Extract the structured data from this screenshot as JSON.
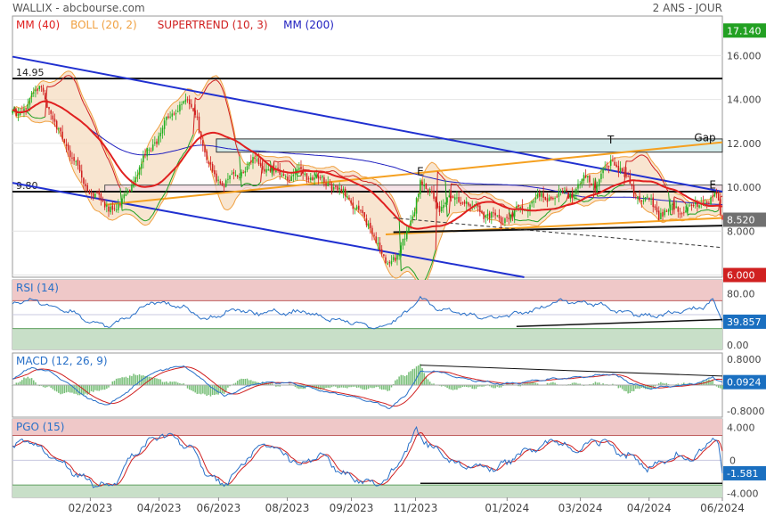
{
  "header": {
    "left": "WALLIX - abcbourse.com",
    "right": "2 ANS - JOUR"
  },
  "colors": {
    "bull": "#22b022",
    "bear": "#d02020",
    "ma40": "#e02020",
    "boll": "#f0a040",
    "boll_fill": "#f5dcc0",
    "supertrend": "#d02020",
    "ma200": "#2020c0",
    "channel": "#2030d0",
    "orange_line": "#f5a020",
    "rsi_line": "#2870c8",
    "macd_line": "#2870c8",
    "signal_line": "#d02020",
    "hist": "#4aa84a",
    "zone_red": "#efc8c8",
    "zone_green": "#c8dfc8",
    "gap_fill": "#cde9e9",
    "price_badge_blue": "#1a6fc0",
    "price_badge_grey": "#707070",
    "price_badge_green": "#22a022",
    "price_badge_red": "#d02020"
  },
  "chart_data": [
    {
      "id": "price",
      "type": "candlestick",
      "legend": [
        {
          "label": "MM (40)",
          "color": "#e02020"
        },
        {
          "label": "BOLL (20, 2)",
          "color": "#f0a040"
        },
        {
          "label": "SUPERTREND (10, 3)",
          "color": "#d02020"
        },
        {
          "label": "MM (200)",
          "color": "#2020c0"
        }
      ],
      "y_range": [
        5.9,
        17.8
      ],
      "y_ticks": [
        "6.000",
        "8.000",
        "10.000",
        "12.000",
        "14.000",
        "16.000"
      ],
      "y_tick_values": [
        6,
        8,
        10,
        12,
        14,
        16
      ],
      "x_labels": [
        "02/2023",
        "04/2023",
        "06/2023",
        "08/2023",
        "09/2023",
        "11/2023",
        "01/2024",
        "03/2024",
        "04/2024",
        "06/2024"
      ],
      "x_label_positions": [
        0.085,
        0.16,
        0.225,
        0.3,
        0.37,
        0.44,
        0.54,
        0.62,
        0.695,
        0.775
      ],
      "x_index_range": [
        0,
        369
      ],
      "price_badges": [
        {
          "text": "17.140",
          "value": 17.14,
          "color": "#22a022"
        },
        {
          "text": "8.520",
          "value": 8.52,
          "color": "#707070"
        },
        {
          "text": "6.000",
          "value": 6.0,
          "color": "#d02020"
        }
      ],
      "levels": [
        {
          "name": "resistance-14.95",
          "label": "14.95",
          "value": 14.95
        },
        {
          "name": "support-9.80",
          "label": "9.80",
          "value": 9.8
        }
      ],
      "annotations": [
        {
          "text": "E",
          "x": 212,
          "y": 10.55
        },
        {
          "text": "T",
          "x": 311,
          "y": 12.0
        },
        {
          "text": "E",
          "x": 364,
          "y": 9.95
        },
        {
          "text": "Gap",
          "x": 360,
          "y": 12.1
        }
      ],
      "anchors": [
        [
          0,
          13.2
        ],
        [
          8,
          13.8
        ],
        [
          15,
          14.6
        ],
        [
          22,
          12.8
        ],
        [
          30,
          11.6
        ],
        [
          38,
          10.0
        ],
        [
          48,
          9.2
        ],
        [
          56,
          9.0
        ],
        [
          62,
          10.2
        ],
        [
          70,
          11.6
        ],
        [
          78,
          12.6
        ],
        [
          84,
          13.6
        ],
        [
          90,
          14.0
        ],
        [
          96,
          13.2
        ],
        [
          100,
          11.4
        ],
        [
          104,
          10.6
        ],
        [
          110,
          10.2
        ],
        [
          118,
          10.7
        ],
        [
          126,
          11.2
        ],
        [
          134,
          10.8
        ],
        [
          142,
          10.5
        ],
        [
          150,
          10.6
        ],
        [
          158,
          10.4
        ],
        [
          166,
          10.1
        ],
        [
          172,
          9.7
        ],
        [
          178,
          9.2
        ],
        [
          184,
          8.3
        ],
        [
          190,
          7.6
        ],
        [
          194,
          6.3
        ],
        [
          198,
          6.8
        ],
        [
          204,
          7.6
        ],
        [
          208,
          8.6
        ],
        [
          212,
          10.4
        ],
        [
          216,
          9.7
        ],
        [
          222,
          9.1
        ],
        [
          228,
          9.5
        ],
        [
          234,
          9.4
        ],
        [
          240,
          9.0
        ],
        [
          248,
          8.7
        ],
        [
          254,
          8.5
        ],
        [
          262,
          8.9
        ],
        [
          268,
          9.2
        ],
        [
          276,
          9.6
        ],
        [
          282,
          9.5
        ],
        [
          290,
          9.7
        ],
        [
          298,
          10.4
        ],
        [
          304,
          10.2
        ],
        [
          308,
          10.7
        ],
        [
          312,
          11.3
        ],
        [
          316,
          10.8
        ],
        [
          320,
          10.2
        ],
        [
          324,
          9.6
        ],
        [
          330,
          9.5
        ],
        [
          336,
          8.8
        ],
        [
          342,
          9.0
        ],
        [
          350,
          8.9
        ],
        [
          356,
          9.2
        ],
        [
          362,
          9.4
        ],
        [
          366,
          9.5
        ],
        [
          369,
          8.52
        ]
      ],
      "channel_lines": [
        {
          "name": "upper-channel",
          "from": [
            0,
            15.95
          ],
          "to": [
            369,
            9.8
          ]
        },
        {
          "name": "lower-channel",
          "from": [
            0,
            10.2
          ],
          "to": [
            266,
            5.9
          ]
        }
      ],
      "support_lines": [
        {
          "name": "orange-trend-1",
          "from": [
            48,
            9.2
          ],
          "to": [
            369,
            12.05
          ]
        },
        {
          "name": "orange-trend-2",
          "from": [
            194,
            7.85
          ],
          "to": [
            369,
            8.6
          ]
        },
        {
          "name": "black-support",
          "from": [
            198,
            7.95
          ],
          "to": [
            369,
            8.25
          ]
        }
      ],
      "dashed_lines": [
        {
          "name": "dashed-trend",
          "from": [
            198,
            8.6
          ],
          "to": [
            369,
            7.25
          ]
        }
      ],
      "gap_zone": {
        "label": "Gap",
        "x_from": 106,
        "x_to": 369,
        "y_low": 11.6,
        "y_high": 12.2
      },
      "pink_zone": {
        "x_from": 48,
        "x_to": 369,
        "y_low": 9.8,
        "y_high": 10.1
      }
    },
    {
      "id": "rsi",
      "type": "line",
      "legend": [
        {
          "label": "RSI (14)",
          "color": "#2870c8"
        }
      ],
      "y_range": [
        0,
        100
      ],
      "y_ticks": [
        "80.00",
        "0.00"
      ],
      "y_tick_values": [
        80,
        0
      ],
      "overbought": 70,
      "oversold": 30,
      "last_value": "39.857",
      "anchors": [
        [
          0,
          65
        ],
        [
          10,
          72
        ],
        [
          20,
          62
        ],
        [
          30,
          55
        ],
        [
          40,
          40
        ],
        [
          50,
          33
        ],
        [
          60,
          46
        ],
        [
          72,
          68
        ],
        [
          82,
          65
        ],
        [
          90,
          60
        ],
        [
          100,
          42
        ],
        [
          110,
          52
        ],
        [
          118,
          58
        ],
        [
          126,
          50
        ],
        [
          134,
          56
        ],
        [
          142,
          52
        ],
        [
          152,
          55
        ],
        [
          162,
          45
        ],
        [
          172,
          42
        ],
        [
          182,
          36
        ],
        [
          192,
          30
        ],
        [
          198,
          42
        ],
        [
          206,
          55
        ],
        [
          212,
          75
        ],
        [
          218,
          62
        ],
        [
          228,
          55
        ],
        [
          240,
          48
        ],
        [
          250,
          44
        ],
        [
          262,
          52
        ],
        [
          272,
          56
        ],
        [
          280,
          68
        ],
        [
          290,
          70
        ],
        [
          298,
          66
        ],
        [
          306,
          64
        ],
        [
          314,
          55
        ],
        [
          322,
          52
        ],
        [
          332,
          48
        ],
        [
          342,
          52
        ],
        [
          352,
          56
        ],
        [
          360,
          62
        ],
        [
          364,
          70
        ],
        [
          367,
          55
        ],
        [
          369,
          39.857
        ]
      ],
      "trend_line": {
        "from": [
          262,
          33
        ],
        "to": [
          369,
          43
        ]
      }
    },
    {
      "id": "macd",
      "type": "line",
      "legend": [
        {
          "label": "MACD (12, 26, 9)",
          "color": "#2870c8"
        }
      ],
      "y_range": [
        -1.0,
        1.0
      ],
      "y_ticks": [
        "0.8000",
        "0.0924",
        "-0.8000"
      ],
      "y_tick_values": [
        0.8,
        0.0924,
        -0.8
      ],
      "last_value": "0.0924",
      "macd_anchors": [
        [
          0,
          0.2
        ],
        [
          10,
          0.55
        ],
        [
          20,
          0.4
        ],
        [
          30,
          0.0
        ],
        [
          40,
          -0.45
        ],
        [
          50,
          -0.62
        ],
        [
          60,
          -0.2
        ],
        [
          70,
          0.3
        ],
        [
          82,
          0.55
        ],
        [
          90,
          0.58
        ],
        [
          100,
          0.1
        ],
        [
          110,
          -0.35
        ],
        [
          118,
          -0.15
        ],
        [
          126,
          0.05
        ],
        [
          136,
          0.08
        ],
        [
          146,
          0.05
        ],
        [
          156,
          -0.1
        ],
        [
          166,
          -0.25
        ],
        [
          176,
          -0.35
        ],
        [
          186,
          -0.5
        ],
        [
          196,
          -0.72
        ],
        [
          204,
          -0.35
        ],
        [
          212,
          0.4
        ],
        [
          220,
          0.45
        ],
        [
          230,
          0.25
        ],
        [
          240,
          0.15
        ],
        [
          252,
          0.05
        ],
        [
          262,
          0.05
        ],
        [
          272,
          0.15
        ],
        [
          284,
          0.2
        ],
        [
          294,
          0.25
        ],
        [
          304,
          0.3
        ],
        [
          312,
          0.35
        ],
        [
          320,
          0.1
        ],
        [
          330,
          -0.1
        ],
        [
          340,
          -0.05
        ],
        [
          350,
          0.0
        ],
        [
          358,
          0.1
        ],
        [
          364,
          0.25
        ],
        [
          369,
          0.0924
        ]
      ],
      "trend_line": {
        "from": [
          212,
          0.62
        ],
        "to": [
          369,
          0.28
        ]
      }
    },
    {
      "id": "pgo",
      "type": "line",
      "legend": [
        {
          "label": "PGO (15)",
          "color": "#2870c8"
        }
      ],
      "y_range": [
        -4.5,
        5.0
      ],
      "y_ticks": [
        "4.000",
        "0",
        "-1.581",
        "-4.000"
      ],
      "y_tick_values": [
        4,
        0,
        -1.581,
        -4
      ],
      "overbought": 3,
      "oversold": -3,
      "last_value": "-1.581",
      "anchors": [
        [
          0,
          1.5
        ],
        [
          8,
          2.8
        ],
        [
          16,
          1.0
        ],
        [
          24,
          0.0
        ],
        [
          32,
          -1.5
        ],
        [
          42,
          -2.8
        ],
        [
          52,
          -3.2
        ],
        [
          62,
          0.5
        ],
        [
          70,
          2.0
        ],
        [
          78,
          3.2
        ],
        [
          86,
          2.5
        ],
        [
          94,
          1.2
        ],
        [
          102,
          -2.0
        ],
        [
          110,
          -3.0
        ],
        [
          118,
          -1.0
        ],
        [
          126,
          1.5
        ],
        [
          134,
          2.0
        ],
        [
          142,
          0.5
        ],
        [
          150,
          -0.5
        ],
        [
          160,
          0.8
        ],
        [
          170,
          -1.5
        ],
        [
          180,
          -2.4
        ],
        [
          190,
          -3.0
        ],
        [
          196,
          -2.0
        ],
        [
          204,
          1.0
        ],
        [
          210,
          3.6
        ],
        [
          216,
          2.0
        ],
        [
          224,
          0.5
        ],
        [
          232,
          -0.5
        ],
        [
          242,
          -0.8
        ],
        [
          252,
          -1.0
        ],
        [
          262,
          0.5
        ],
        [
          272,
          1.5
        ],
        [
          282,
          2.5
        ],
        [
          292,
          1.0
        ],
        [
          300,
          2.0
        ],
        [
          308,
          2.5
        ],
        [
          314,
          1.0
        ],
        [
          322,
          0.5
        ],
        [
          330,
          -1.0
        ],
        [
          338,
          -0.3
        ],
        [
          346,
          0.5
        ],
        [
          354,
          0.2
        ],
        [
          360,
          1.6
        ],
        [
          364,
          3.0
        ],
        [
          367,
          2.0
        ],
        [
          369,
          -1.581
        ]
      ],
      "trend_line": {
        "from": [
          212,
          -2.8
        ],
        "to": [
          369,
          -2.8
        ]
      }
    }
  ]
}
